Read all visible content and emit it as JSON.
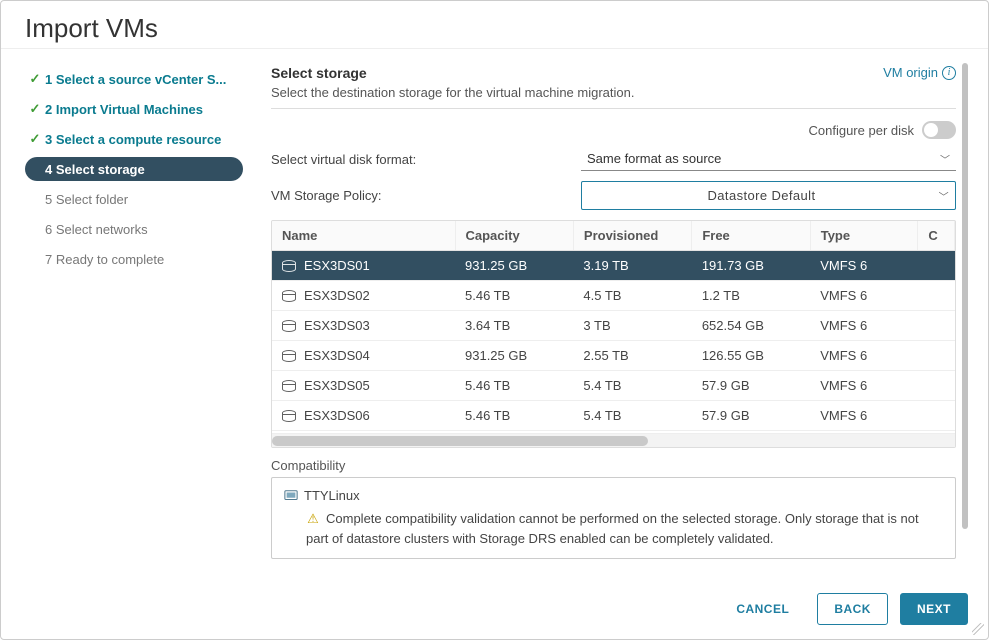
{
  "modal": {
    "title": "Import VMs"
  },
  "steps": [
    {
      "label": "1 Select a source vCenter S...",
      "state": "done"
    },
    {
      "label": "2 Import Virtual Machines",
      "state": "done"
    },
    {
      "label": "3 Select a compute resource",
      "state": "done"
    },
    {
      "label": "4 Select storage",
      "state": "active"
    },
    {
      "label": "5 Select folder",
      "state": "pending"
    },
    {
      "label": "6 Select networks",
      "state": "pending"
    },
    {
      "label": "7 Ready to complete",
      "state": "pending"
    }
  ],
  "header": {
    "title": "Select storage",
    "subtitle": "Select the destination storage for the virtual machine migration.",
    "vm_origin": "VM origin"
  },
  "config_per_disk": {
    "label": "Configure per disk",
    "enabled": false
  },
  "disk_format": {
    "label": "Select virtual disk format:",
    "value": "Same format as source"
  },
  "storage_policy": {
    "label": "VM Storage Policy:",
    "value": "Datastore Default"
  },
  "table": {
    "columns": {
      "name": "Name",
      "capacity": "Capacity",
      "provisioned": "Provisioned",
      "free": "Free",
      "type": "Type",
      "c": "C"
    },
    "rows": [
      {
        "name": "ESX3DS01",
        "capacity": "931.25 GB",
        "provisioned": "3.19 TB",
        "free": "191.73 GB",
        "type": "VMFS 6",
        "selected": true
      },
      {
        "name": "ESX3DS02",
        "capacity": "5.46 TB",
        "provisioned": "4.5 TB",
        "free": "1.2 TB",
        "type": "VMFS 6",
        "selected": false
      },
      {
        "name": "ESX3DS03",
        "capacity": "3.64 TB",
        "provisioned": "3 TB",
        "free": "652.54 GB",
        "type": "VMFS 6",
        "selected": false
      },
      {
        "name": "ESX3DS04",
        "capacity": "931.25 GB",
        "provisioned": "2.55 TB",
        "free": "126.55 GB",
        "type": "VMFS 6",
        "selected": false
      },
      {
        "name": "ESX3DS05",
        "capacity": "5.46 TB",
        "provisioned": "5.4 TB",
        "free": "57.9 GB",
        "type": "VMFS 6",
        "selected": false
      },
      {
        "name": "ESX3DS06",
        "capacity": "5.46 TB",
        "provisioned": "5.4 TB",
        "free": "57.9 GB",
        "type": "VMFS 6",
        "selected": false
      }
    ]
  },
  "compatibility": {
    "label": "Compatibility",
    "vm_name": "TTYLinux",
    "message": "Complete compatibility validation cannot be performed on the selected storage. Only storage that is not part of datastore clusters with Storage DRS enabled can be completely validated."
  },
  "footer": {
    "cancel": "CANCEL",
    "back": "BACK",
    "next": "NEXT"
  },
  "colors": {
    "accent": "#1f7ea1",
    "step_active_bg": "#324f61",
    "check_green": "#3f9c35",
    "row_selected_bg": "#324f61"
  }
}
